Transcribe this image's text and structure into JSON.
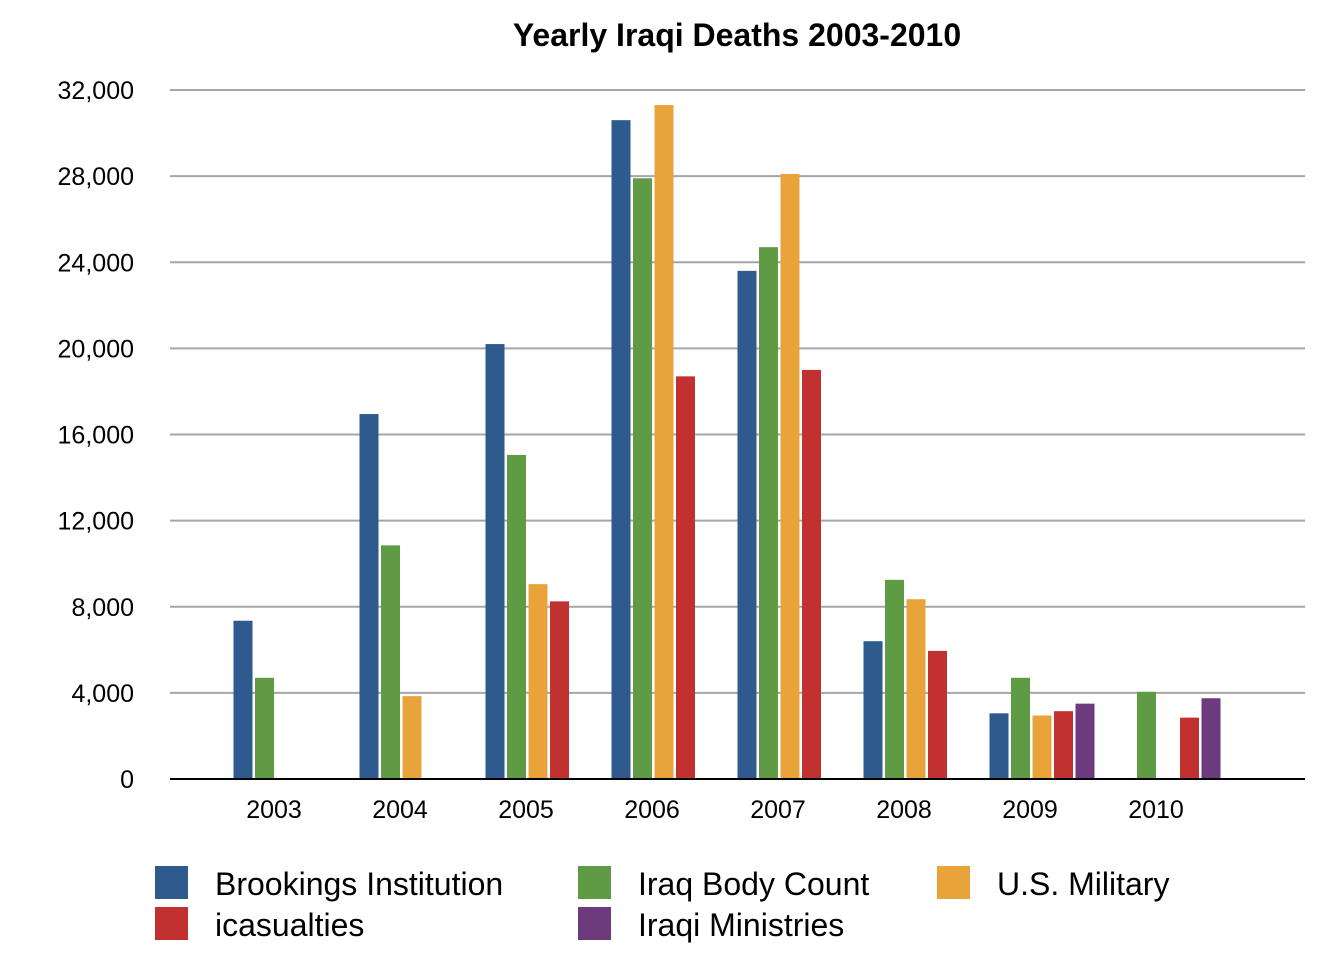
{
  "chart_data": {
    "type": "bar",
    "title": "Yearly Iraqi Deaths 2003-2010",
    "xlabel": "",
    "ylabel": "",
    "categories": [
      "2003",
      "2004",
      "2005",
      "2006",
      "2007",
      "2008",
      "2009",
      "2010"
    ],
    "ylim": [
      0,
      32000
    ],
    "yticks": [
      0,
      4000,
      8000,
      12000,
      16000,
      20000,
      24000,
      28000,
      32000
    ],
    "ytick_labels": [
      "0",
      "4,000",
      "8,000",
      "12,000",
      "16,000",
      "20,000",
      "24,000",
      "28,000",
      "32,000"
    ],
    "grid": true,
    "legend_position": "bottom",
    "series": [
      {
        "name": "Brookings Institution",
        "color": "#2e5a8e",
        "values": [
          7350,
          16950,
          20200,
          30600,
          23600,
          6400,
          3050,
          null
        ]
      },
      {
        "name": "Iraq Body Count",
        "color": "#5f9a45",
        "values": [
          4700,
          10850,
          15050,
          27900,
          24700,
          9250,
          4700,
          4050
        ]
      },
      {
        "name": "U.S. Military",
        "color": "#e8a33b",
        "values": [
          null,
          3850,
          9050,
          31300,
          28100,
          8350,
          2950,
          null
        ]
      },
      {
        "name": "icasualties",
        "color": "#c0312f",
        "values": [
          null,
          null,
          8250,
          18700,
          19000,
          5950,
          3150,
          2850
        ]
      },
      {
        "name": "Iraqi Ministries",
        "color": "#6d3a7e",
        "values": [
          null,
          null,
          null,
          null,
          null,
          null,
          3500,
          3750
        ]
      }
    ]
  }
}
